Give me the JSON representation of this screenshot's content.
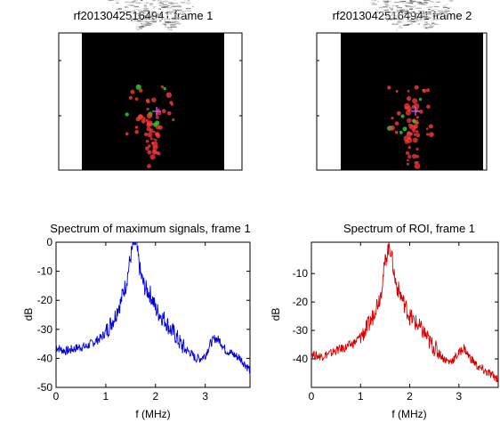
{
  "figure": {
    "frame1_title": "rf20130425164941 frame 1",
    "frame2_title": "rf20130425164941 frame 2"
  },
  "images": [
    {
      "kind": "ultrasound-frame",
      "title": "rf20130425164941 frame 1",
      "markers": [
        "#ff3a3a",
        "#2ad82a",
        "#c060ff"
      ]
    },
    {
      "kind": "ultrasound-frame",
      "title": "rf20130425164941 frame 2",
      "markers": [
        "#ff3a3a",
        "#2ad82a",
        "#c060ff"
      ]
    }
  ],
  "chart_data": [
    {
      "type": "line",
      "title": "Spectrum of maximum signals, frame 1",
      "xlabel": "f (MHz)",
      "ylabel": "dB",
      "xlim": [
        0,
        3.9
      ],
      "ylim": [
        -50,
        0
      ],
      "xticks": [
        "0",
        "1",
        "2",
        "3"
      ],
      "yticks": [
        "0",
        "-10",
        "-20",
        "-30",
        "-40",
        "-50"
      ],
      "grid": false,
      "series": [
        {
          "color": "#0000dd",
          "x": [
            0,
            0.1,
            0.2,
            0.3,
            0.4,
            0.5,
            0.6,
            0.7,
            0.8,
            0.9,
            1.0,
            1.1,
            1.2,
            1.25,
            1.3,
            1.35,
            1.4,
            1.45,
            1.5,
            1.55,
            1.58,
            1.62,
            1.65,
            1.7,
            1.75,
            1.8,
            1.85,
            1.9,
            1.95,
            2.0,
            2.1,
            2.2,
            2.3,
            2.4,
            2.5,
            2.6,
            2.7,
            2.8,
            2.9,
            3.0,
            3.1,
            3.2,
            3.3,
            3.4,
            3.5,
            3.6,
            3.7,
            3.8,
            3.9
          ],
          "y": [
            -36,
            -37,
            -37.5,
            -37,
            -36.5,
            -36,
            -36,
            -35,
            -34,
            -33,
            -31,
            -28,
            -25,
            -22,
            -21,
            -17,
            -15,
            -10,
            -5,
            -1,
            0,
            -2,
            -5,
            -11,
            -14,
            -16,
            -17,
            -18,
            -20,
            -23,
            -25,
            -27,
            -30,
            -32,
            -35,
            -37,
            -38,
            -40,
            -40,
            -39,
            -35,
            -33,
            -34,
            -37,
            -38,
            -39,
            -40,
            -42,
            -44
          ]
        }
      ]
    },
    {
      "type": "line",
      "title": "Spectrum of ROI, frame 1",
      "xlabel": "f (MHz)",
      "ylabel": "dB",
      "xlim": [
        0,
        3.8
      ],
      "ylim": [
        -50,
        1
      ],
      "xticks": [
        "0",
        "1",
        "2",
        "3"
      ],
      "yticks": [
        "-10",
        "-20",
        "-30",
        "-40"
      ],
      "grid": false,
      "series": [
        {
          "color": "#dd0000",
          "x": [
            0,
            0.1,
            0.2,
            0.3,
            0.4,
            0.5,
            0.6,
            0.7,
            0.8,
            0.9,
            1.0,
            1.1,
            1.2,
            1.25,
            1.3,
            1.35,
            1.4,
            1.45,
            1.5,
            1.55,
            1.58,
            1.62,
            1.65,
            1.7,
            1.75,
            1.8,
            1.85,
            1.9,
            1.95,
            2.0,
            2.1,
            2.2,
            2.3,
            2.4,
            2.5,
            2.6,
            2.7,
            2.8,
            2.9,
            3.0,
            3.1,
            3.2,
            3.3,
            3.4,
            3.5,
            3.6,
            3.7,
            3.8
          ],
          "y": [
            -38,
            -39,
            -39,
            -38.5,
            -38,
            -37,
            -36.5,
            -36,
            -35,
            -34,
            -32,
            -30,
            -27,
            -25,
            -22,
            -20,
            -18,
            -12,
            -6,
            -2,
            0,
            -2,
            -6,
            -12,
            -15,
            -17,
            -19,
            -21,
            -23,
            -25,
            -27,
            -29,
            -31,
            -34,
            -36,
            -38,
            -40,
            -41,
            -40,
            -38,
            -36,
            -39,
            -41,
            -43,
            -44,
            -45,
            -46,
            -47
          ]
        }
      ]
    }
  ]
}
